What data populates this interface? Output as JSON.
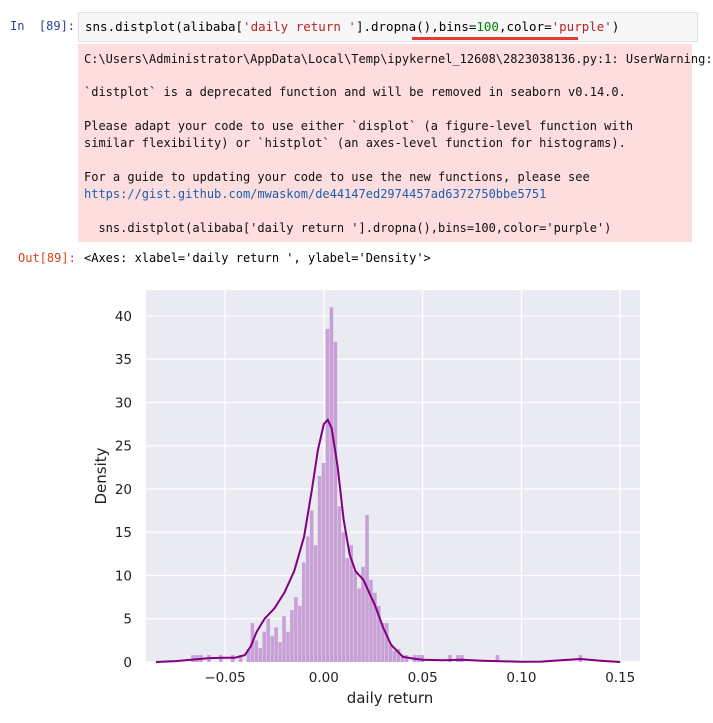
{
  "input_cell": {
    "prompt": "In  [89]:",
    "code_parts": [
      {
        "t": "sns.distplot(alibaba[",
        "c": ""
      },
      {
        "t": "'daily return '",
        "c": "str"
      },
      {
        "t": "].dropna(),bins=",
        "c": ""
      },
      {
        "t": "100",
        "c": "num"
      },
      {
        "t": ",color=",
        "c": ""
      },
      {
        "t": "'purple'",
        "c": "str"
      },
      {
        "t": ")",
        "c": ""
      }
    ]
  },
  "stderr": {
    "line1": "C:\\Users\\Administrator\\AppData\\Local\\Temp\\ipykernel_12608\\2823038136.py:1: UserWarning:",
    "line2": "`distplot` is a deprecated function and will be removed in seaborn v0.14.0.",
    "line3": "Please adapt your code to use either `displot` (a figure-level function with",
    "line4": "similar flexibility) or `histplot` (an axes-level function for histograms).",
    "line5": "For a guide to updating your code to use the new functions, please see",
    "link": "https://gist.github.com/mwaskom/de44147ed2974457ad6372750bbe5751",
    "line7": "  sns.distplot(alibaba['daily return '].dropna(),bins=100,color='purple')"
  },
  "output_cell": {
    "prompt": "Out[89]:",
    "text": "<Axes: xlabel='daily return ', ylabel='Density'>"
  },
  "colors": {
    "plot_bg": "#eaeaf2",
    "bar_fill": "#c8a0d6",
    "kde_line": "#800080"
  },
  "chart_data": {
    "type": "bar",
    "xlabel": "daily return",
    "ylabel": "Density",
    "xlim": [
      -0.09,
      0.16
    ],
    "ylim": [
      0,
      43
    ],
    "xticks": [
      -0.05,
      0.0,
      0.05,
      0.1,
      0.15
    ],
    "xtick_labels": [
      "−0.05",
      "0.00",
      "0.05",
      "0.10",
      "0.15"
    ],
    "yticks": [
      0,
      5,
      10,
      15,
      20,
      25,
      30,
      35,
      40
    ],
    "ytick_labels": [
      "0",
      "5",
      "10",
      "15",
      "20",
      "25",
      "30",
      "35",
      "40"
    ],
    "grid": true,
    "bin_width": 0.0021,
    "bins": [
      {
        "x": -0.066,
        "y": 0.8
      },
      {
        "x": -0.064,
        "y": 0.8
      },
      {
        "x": -0.062,
        "y": 0.8
      },
      {
        "x": -0.058,
        "y": 0.8
      },
      {
        "x": -0.052,
        "y": 0.8
      },
      {
        "x": -0.046,
        "y": 0.8
      },
      {
        "x": -0.042,
        "y": 0.8
      },
      {
        "x": -0.038,
        "y": 1.5
      },
      {
        "x": -0.036,
        "y": 4.5
      },
      {
        "x": -0.034,
        "y": 2.5
      },
      {
        "x": -0.032,
        "y": 1.6
      },
      {
        "x": -0.03,
        "y": 3.5
      },
      {
        "x": -0.028,
        "y": 5.0
      },
      {
        "x": -0.026,
        "y": 3.0
      },
      {
        "x": -0.024,
        "y": 4.0
      },
      {
        "x": -0.022,
        "y": 2.3
      },
      {
        "x": -0.02,
        "y": 5.3
      },
      {
        "x": -0.018,
        "y": 3.5
      },
      {
        "x": -0.016,
        "y": 6.0
      },
      {
        "x": -0.014,
        "y": 7.5
      },
      {
        "x": -0.012,
        "y": 6.5
      },
      {
        "x": -0.01,
        "y": 11.5
      },
      {
        "x": -0.008,
        "y": 14.5
      },
      {
        "x": -0.006,
        "y": 17.5
      },
      {
        "x": -0.004,
        "y": 13.5
      },
      {
        "x": -0.002,
        "y": 21.5
      },
      {
        "x": 0.0,
        "y": 23.0
      },
      {
        "x": 0.002,
        "y": 38.5
      },
      {
        "x": 0.004,
        "y": 41.0
      },
      {
        "x": 0.006,
        "y": 37.0
      },
      {
        "x": 0.008,
        "y": 18.0
      },
      {
        "x": 0.01,
        "y": 15.0
      },
      {
        "x": 0.012,
        "y": 12.0
      },
      {
        "x": 0.014,
        "y": 13.5
      },
      {
        "x": 0.016,
        "y": 10.5
      },
      {
        "x": 0.018,
        "y": 8.5
      },
      {
        "x": 0.02,
        "y": 11.0
      },
      {
        "x": 0.022,
        "y": 17.0
      },
      {
        "x": 0.024,
        "y": 9.5
      },
      {
        "x": 0.026,
        "y": 8.0
      },
      {
        "x": 0.028,
        "y": 6.5
      },
      {
        "x": 0.03,
        "y": 4.5
      },
      {
        "x": 0.032,
        "y": 4.5
      },
      {
        "x": 0.034,
        "y": 2.0
      },
      {
        "x": 0.036,
        "y": 1.3
      },
      {
        "x": 0.038,
        "y": 1.5
      },
      {
        "x": 0.04,
        "y": 0.8
      },
      {
        "x": 0.042,
        "y": 0.8
      },
      {
        "x": 0.046,
        "y": 0.8
      },
      {
        "x": 0.048,
        "y": 0.8
      },
      {
        "x": 0.05,
        "y": 0.8
      },
      {
        "x": 0.064,
        "y": 0.8
      },
      {
        "x": 0.068,
        "y": 0.8
      },
      {
        "x": 0.07,
        "y": 0.8
      },
      {
        "x": 0.088,
        "y": 0.8
      },
      {
        "x": 0.13,
        "y": 0.8
      }
    ],
    "kde": {
      "x": [
        -0.085,
        -0.075,
        -0.065,
        -0.058,
        -0.05,
        -0.045,
        -0.04,
        -0.037,
        -0.034,
        -0.03,
        -0.025,
        -0.02,
        -0.015,
        -0.01,
        -0.006,
        -0.003,
        0.0,
        0.002,
        0.004,
        0.007,
        0.01,
        0.013,
        0.016,
        0.02,
        0.023,
        0.026,
        0.03,
        0.034,
        0.04,
        0.045,
        0.05,
        0.06,
        0.07,
        0.08,
        0.09,
        0.1,
        0.11,
        0.12,
        0.13,
        0.14,
        0.15
      ],
      "y": [
        0.0,
        0.1,
        0.3,
        0.45,
        0.5,
        0.5,
        0.8,
        1.8,
        3.5,
        5.0,
        6.2,
        8.0,
        10.5,
        14.5,
        20.0,
        24.5,
        27.5,
        28.0,
        27.0,
        22.5,
        16.5,
        12.5,
        10.5,
        9.5,
        8.0,
        6.5,
        4.0,
        2.0,
        0.6,
        0.4,
        0.25,
        0.2,
        0.25,
        0.15,
        0.08,
        0.03,
        0.05,
        0.2,
        0.35,
        0.15,
        0.0
      ]
    }
  }
}
